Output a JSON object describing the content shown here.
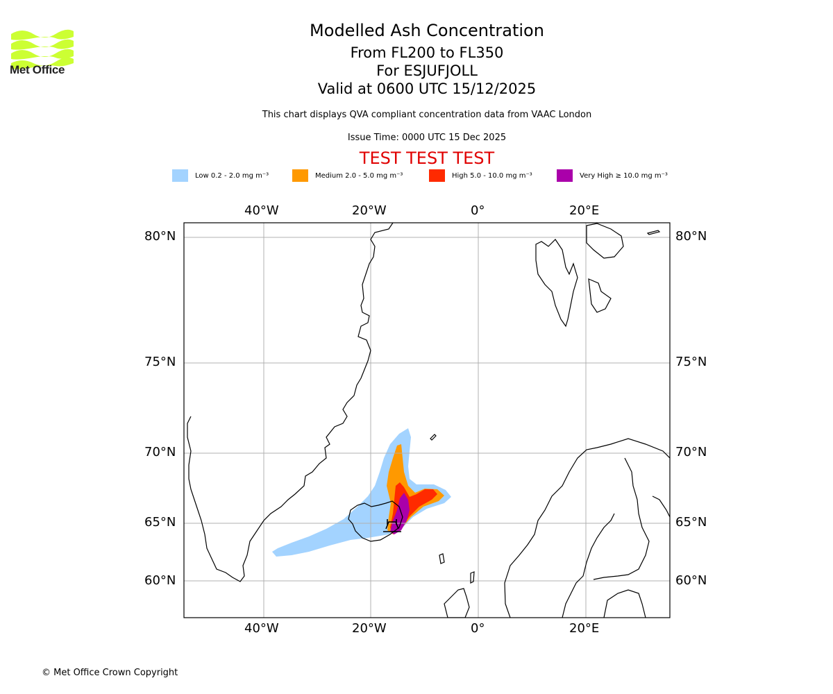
{
  "logo": {
    "text": "Met Office",
    "color": "#ccff33"
  },
  "title": {
    "main": "Modelled Ash Concentration",
    "levels": "From FL200 to FL350",
    "volcano": "For ESJUFJOLL",
    "valid": "Valid at 0600 UTC 15/12/2025"
  },
  "note": "This chart displays QVA compliant concentration data from VAAC London",
  "issue_time": "Issue Time: 0000 UTC 15 Dec 2025",
  "test_banner": "TEST TEST TEST",
  "legend": [
    {
      "label": "Low 0.2 - 2.0 mg m⁻³",
      "color": "#a3d3ff"
    },
    {
      "label": "Medium 2.0 - 5.0 mg m⁻³",
      "color": "#ff9900"
    },
    {
      "label": "High 5.0 - 10.0 mg m⁻³",
      "color": "#ff2a00"
    },
    {
      "label": "Very High  ≥  10.0 mg m⁻³",
      "color": "#aa00aa"
    }
  ],
  "map": {
    "lon_ticks": [
      "40°W",
      "20°W",
      "0°",
      "20°E"
    ],
    "lat_ticks": [
      "80°N",
      "75°N",
      "70°N",
      "65°N",
      "60°N"
    ],
    "grid_color": "#b0b0b0"
  },
  "copyright": "© Met Office Crown Copyright"
}
